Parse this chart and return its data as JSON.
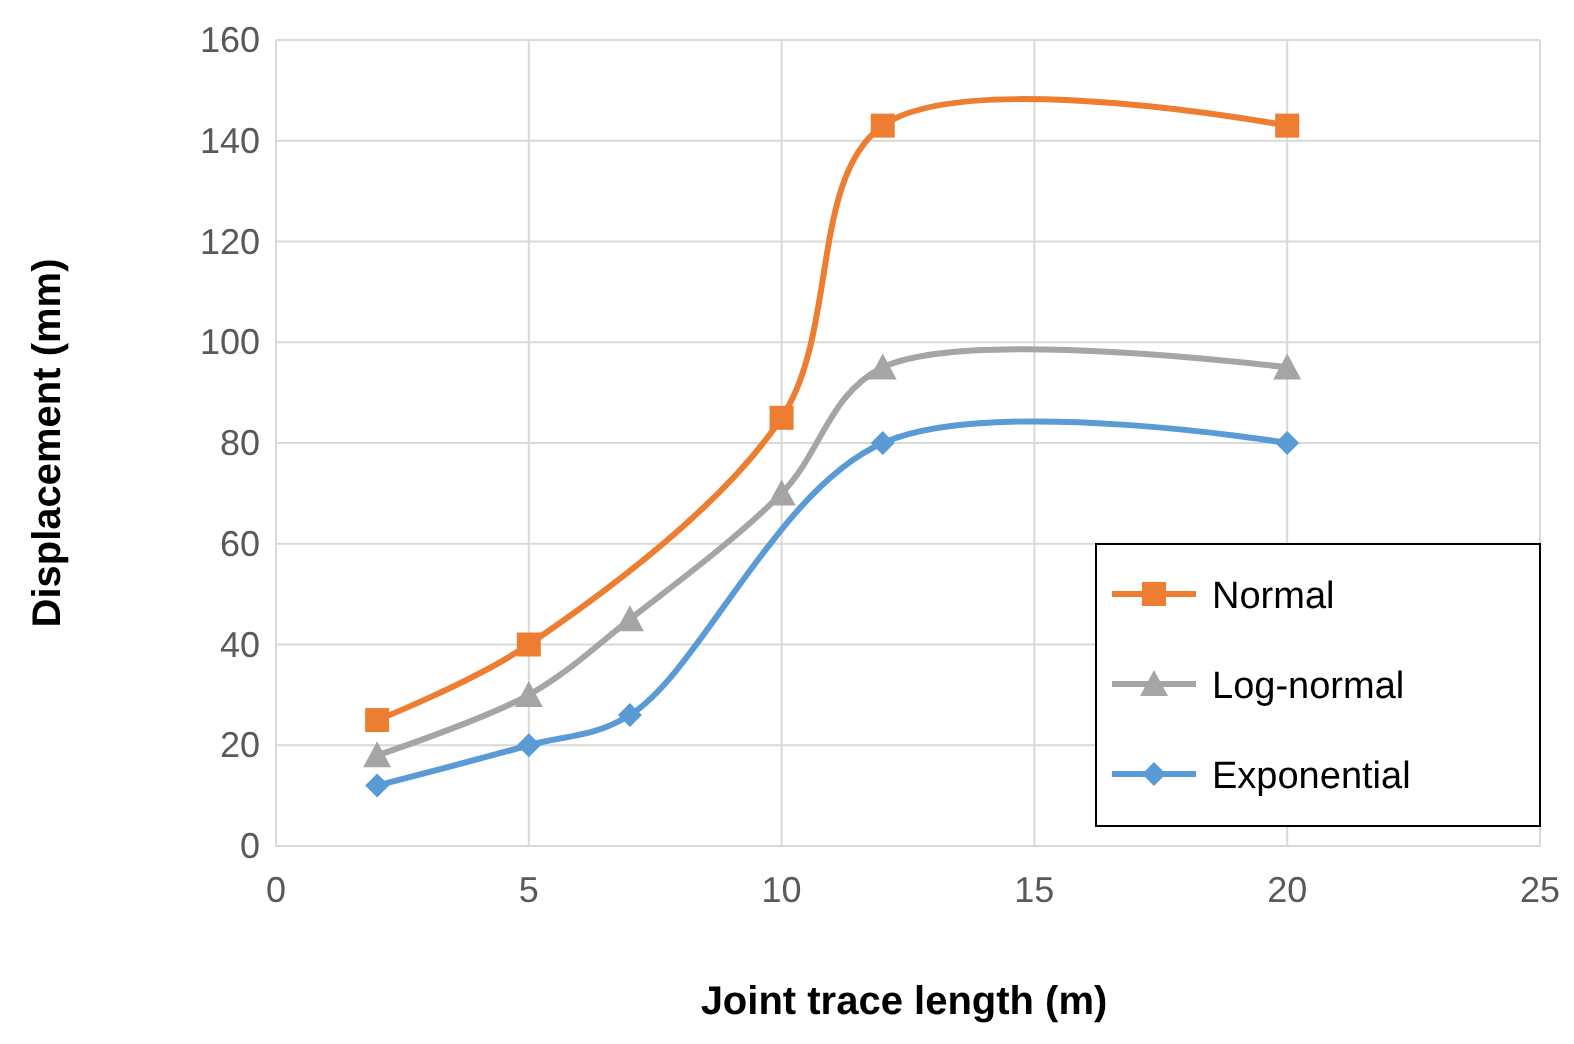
{
  "chart_data": {
    "type": "line",
    "xlabel": "Joint trace length (m)",
    "ylabel": "Displacement (mm)",
    "xlim": [
      0,
      25
    ],
    "xticks": [
      0,
      5,
      10,
      15,
      20,
      25
    ],
    "ylim": [
      0,
      160
    ],
    "yticks": [
      0,
      20,
      40,
      60,
      80,
      100,
      120,
      140,
      160
    ],
    "grid": true,
    "legend": "bottom right",
    "series": [
      {
        "name": "Normal",
        "color": "#ed7d31",
        "marker": "square",
        "x": [
          2,
          5,
          10,
          12,
          20
        ],
        "values": [
          25,
          40,
          85,
          143,
          143
        ]
      },
      {
        "name": "Log-normal",
        "color": "#a5a5a5",
        "marker": "triangle",
        "x": [
          2,
          5,
          7,
          10,
          12,
          20
        ],
        "values": [
          18,
          30,
          45,
          70,
          95,
          95
        ]
      },
      {
        "name": "Exponential",
        "color": "#5b9bd5",
        "marker": "diamond",
        "x": [
          2,
          5,
          7,
          12,
          20
        ],
        "values": [
          12,
          20,
          26,
          80,
          80
        ]
      }
    ]
  }
}
